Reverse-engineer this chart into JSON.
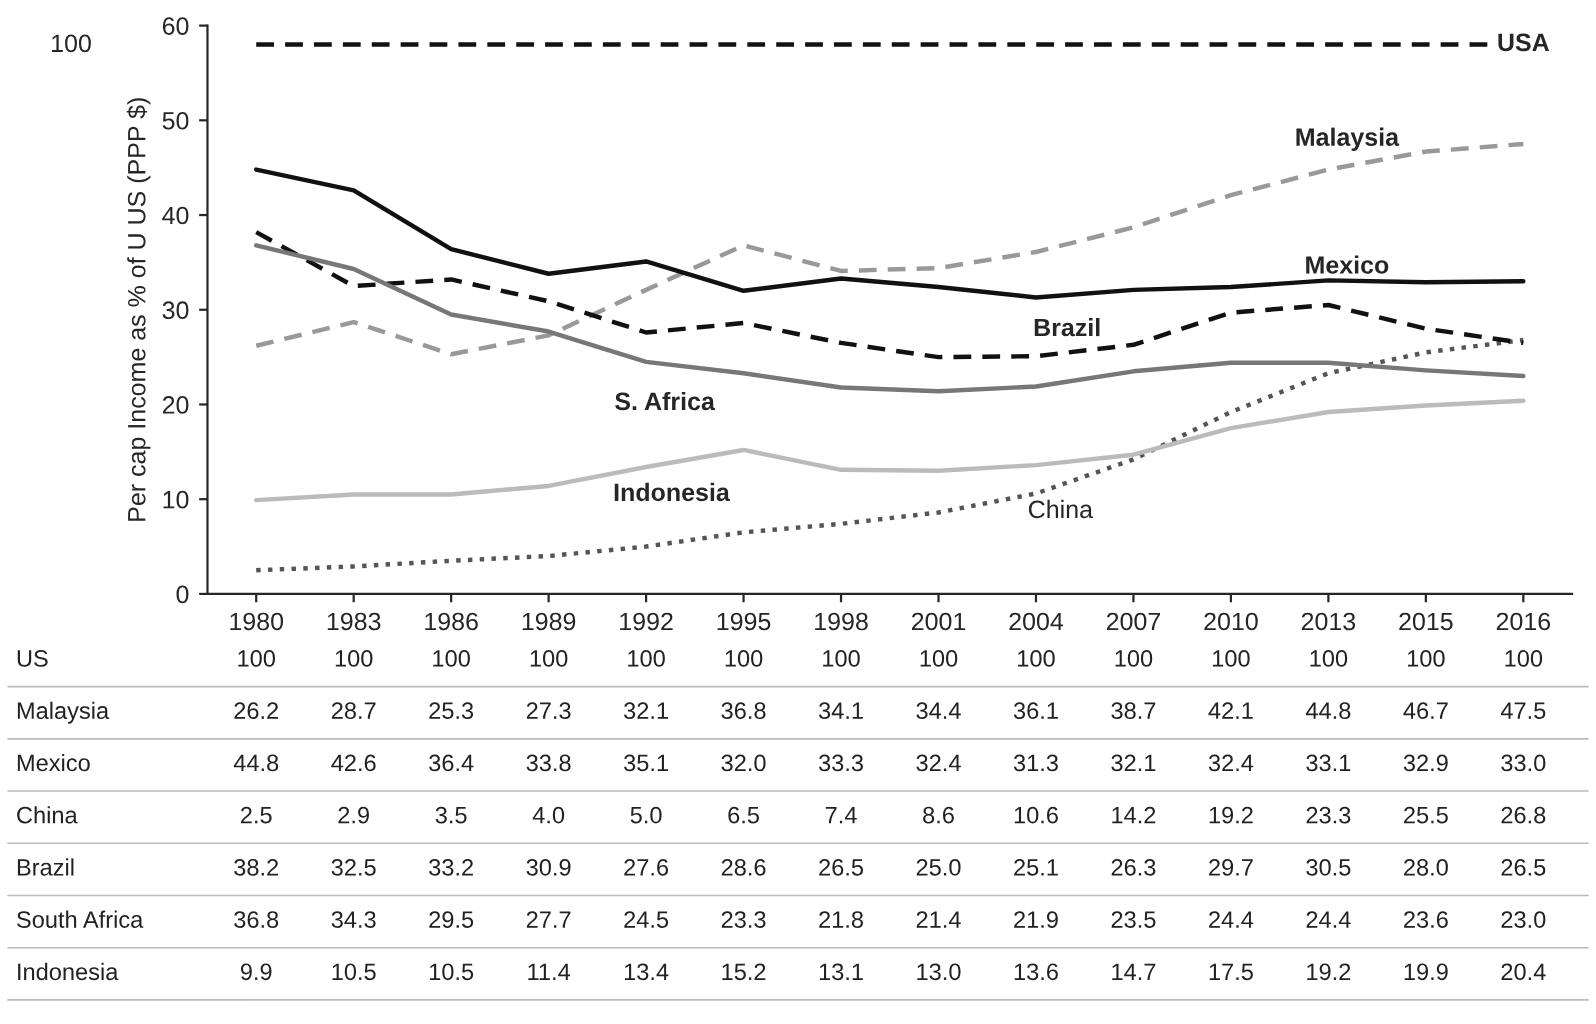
{
  "chart_data": {
    "type": "line",
    "ylabel": "Per cap Income as % of U US (PPP $)",
    "categories": [
      "1980",
      "1983",
      "1986",
      "1989",
      "1992",
      "1995",
      "1998",
      "2001",
      "2004",
      "2007",
      "2010",
      "2013",
      "2015",
      "2016"
    ],
    "ylim": [
      0,
      60
    ],
    "yticks": [
      0,
      10,
      20,
      30,
      40,
      50,
      60
    ],
    "grid": false,
    "ref_lines": [
      {
        "axis": "y",
        "value": 58,
        "label": "USA",
        "color": "#111111",
        "line_style": "dashed"
      }
    ],
    "series": [
      {
        "values": [
          null,
          null,
          null,
          null,
          null,
          null,
          null,
          null,
          null,
          null,
          null,
          null,
          null,
          null
        ],
        "value_labels": [
          "100",
          "100",
          "100",
          "100",
          "100",
          "100",
          "100",
          "100",
          "100",
          "100",
          "100",
          "100",
          "100",
          "100"
        ]
      },
      {
        "name": "Malaysia",
        "color": "#999999",
        "line_style": "dashed",
        "values": [
          26.2,
          28.7,
          25.3,
          27.3,
          32.1,
          36.8,
          34.1,
          34.4,
          36.1,
          38.7,
          42.1,
          44.8,
          46.7,
          47.5
        ],
        "value_labels": [
          "26.2",
          "28.7",
          "25.3",
          "27.3",
          "32.1",
          "36.8",
          "34.1",
          "34.4",
          "36.1",
          "38.7",
          "42.1",
          "44.8",
          "46.7",
          "47.5"
        ]
      },
      {
        "name": "Mexico",
        "color": "#111111",
        "line_style": "solid",
        "values": [
          44.8,
          42.6,
          36.4,
          33.8,
          35.1,
          32.0,
          33.3,
          32.4,
          31.3,
          32.1,
          32.4,
          33.1,
          32.9,
          33.0
        ],
        "value_labels": [
          "44.8",
          "42.6",
          "36.4",
          "33.8",
          "35.1",
          "32.0",
          "33.3",
          "32.4",
          "31.3",
          "32.1",
          "32.4",
          "33.1",
          "32.9",
          "33.0"
        ]
      },
      {
        "name": "China",
        "color": "#555555",
        "line_style": "dotted",
        "values": [
          2.5,
          2.9,
          3.5,
          4.0,
          5.0,
          6.5,
          7.4,
          8.6,
          10.6,
          14.2,
          19.2,
          23.3,
          25.5,
          26.8
        ],
        "value_labels": [
          "2.5",
          "2.9",
          "3.5",
          "4.0",
          "5.0",
          "6.5",
          "7.4",
          "8.6",
          "10.6",
          "14.2",
          "19.2",
          "23.3",
          "25.5",
          "26.8"
        ]
      },
      {
        "name": "Brazil",
        "color": "#111111",
        "line_style": "dashed",
        "values": [
          38.2,
          32.5,
          33.2,
          30.9,
          27.6,
          28.6,
          26.5,
          25.0,
          25.1,
          26.3,
          29.7,
          30.5,
          28.0,
          26.5
        ],
        "value_labels": [
          "38.2",
          "32.5",
          "33.2",
          "30.9",
          "27.6",
          "28.6",
          "26.5",
          "25.0",
          "25.1",
          "26.3",
          "29.7",
          "30.5",
          "28.0",
          "26.5"
        ]
      },
      {
        "name": "S. Africa",
        "color": "#777777",
        "line_style": "solid",
        "values": [
          36.8,
          34.3,
          29.5,
          27.7,
          24.5,
          23.3,
          21.8,
          21.4,
          21.9,
          23.5,
          24.4,
          24.4,
          23.6,
          23.0
        ],
        "value_labels": [
          "36.8",
          "34.3",
          "29.5",
          "27.7",
          "24.5",
          "23.3",
          "21.8",
          "21.4",
          "21.9",
          "23.5",
          "24.4",
          "24.4",
          "23.6",
          "23.0"
        ]
      },
      {
        "name": "Indonesia",
        "color": "#bbbbbb",
        "line_style": "solid",
        "values": [
          9.9,
          10.5,
          10.5,
          11.4,
          13.4,
          15.2,
          13.1,
          13.0,
          13.6,
          14.7,
          17.5,
          19.2,
          19.9,
          20.4
        ],
        "value_labels": [
          "9.9",
          "10.5",
          "10.5",
          "11.4",
          "13.4",
          "15.2",
          "13.1",
          "13.0",
          "13.6",
          "14.7",
          "17.5",
          "19.2",
          "19.9",
          "20.4"
        ]
      }
    ],
    "annotations": [
      "100",
      "US",
      "Malaysia",
      "Mexico",
      "China",
      "Brazil",
      "South Africa",
      "Indonesia"
    ]
  }
}
